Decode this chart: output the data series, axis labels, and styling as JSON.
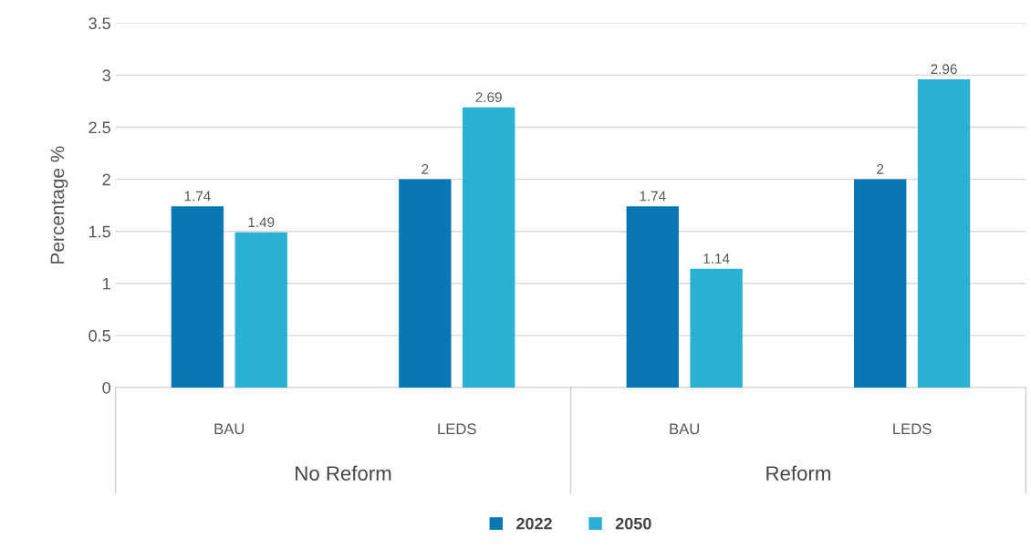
{
  "chart_data": {
    "type": "bar",
    "ylabel": "Percentage %",
    "categories": [
      "BAU",
      "LEDS",
      "BAU",
      "LEDS"
    ],
    "annotations": [
      "No Reform",
      "Reform"
    ],
    "series": [
      {
        "name": "2022",
        "color": "#0a77b4",
        "values": [
          1.74,
          2,
          1.74,
          2
        ]
      },
      {
        "name": "2050",
        "color": "#29b0d3",
        "values": [
          1.49,
          2.69,
          1.14,
          2.96
        ]
      }
    ],
    "ylim": [
      0,
      3.5
    ],
    "yticks": [
      0,
      0.5,
      1,
      1.5,
      2,
      2.5,
      3,
      3.5
    ],
    "grid": "y",
    "legend": "bottom",
    "data_labels": true
  }
}
